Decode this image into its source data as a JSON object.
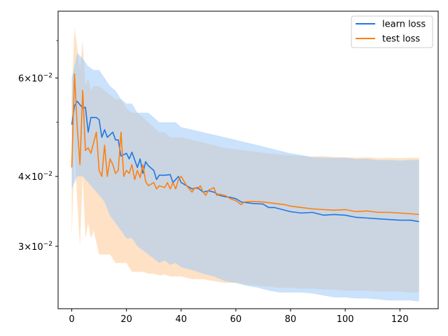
{
  "chart_data": {
    "type": "line",
    "title": "",
    "xlabel": "",
    "ylabel": "",
    "xlim": [
      -5,
      134
    ],
    "ylim": [
      0.0232,
      0.079
    ],
    "yscale": "log",
    "grid": false,
    "legend_position": "top-right",
    "x_ticks": [
      0,
      20,
      40,
      60,
      80,
      100,
      120
    ],
    "x_tick_labels": [
      "0",
      "20",
      "40",
      "60",
      "80",
      "100",
      "120"
    ],
    "y_ticks": [
      0.03,
      0.04,
      0.06
    ],
    "y_tick_labels": [
      {
        "base": "3",
        "times": "×",
        "pow": "10",
        "exp": "−2"
      },
      {
        "base": "4",
        "times": "×",
        "pow": "10",
        "exp": "−2"
      },
      {
        "base": "6",
        "times": "×",
        "pow": "10",
        "exp": "−2"
      }
    ],
    "y_minor_ticks": [
      0.05,
      0.07
    ],
    "x_max": 127,
    "series": [
      {
        "name": "learn loss",
        "color": "#1f77e4",
        "band_color": "#9fcbf7",
        "points": [
          [
            0,
            0.0495
          ],
          [
            1,
            0.0535
          ],
          [
            2,
            0.0545
          ],
          [
            4,
            0.053
          ],
          [
            5,
            0.0532
          ],
          [
            6,
            0.048
          ],
          [
            7,
            0.051
          ],
          [
            9,
            0.051
          ],
          [
            10,
            0.0505
          ],
          [
            11,
            0.047
          ],
          [
            12,
            0.0485
          ],
          [
            13,
            0.047
          ],
          [
            15,
            0.048
          ],
          [
            16,
            0.0465
          ],
          [
            17,
            0.0465
          ],
          [
            18,
            0.0435
          ],
          [
            20,
            0.044
          ],
          [
            21,
            0.043
          ],
          [
            22,
            0.0442
          ],
          [
            24,
            0.0415
          ],
          [
            25,
            0.043
          ],
          [
            26,
            0.0405
          ],
          [
            27,
            0.0425
          ],
          [
            28,
            0.0418
          ],
          [
            30,
            0.041
          ],
          [
            31,
            0.0395
          ],
          [
            32,
            0.0402
          ],
          [
            34,
            0.0402
          ],
          [
            36,
            0.0403
          ],
          [
            37,
            0.039
          ],
          [
            38,
            0.0395
          ],
          [
            39,
            0.04
          ],
          [
            40,
            0.039
          ],
          [
            42,
            0.0385
          ],
          [
            44,
            0.038
          ],
          [
            46,
            0.0382
          ],
          [
            48,
            0.0375
          ],
          [
            50,
            0.0377
          ],
          [
            52,
            0.0375
          ],
          [
            54,
            0.037
          ],
          [
            56,
            0.0368
          ],
          [
            58,
            0.0367
          ],
          [
            60,
            0.0365
          ],
          [
            62,
            0.036
          ],
          [
            66,
            0.0358
          ],
          [
            70,
            0.0357
          ],
          [
            72,
            0.0352
          ],
          [
            74,
            0.0352
          ],
          [
            76,
            0.035
          ],
          [
            80,
            0.0346
          ],
          [
            84,
            0.0344
          ],
          [
            88,
            0.0345
          ],
          [
            92,
            0.0341
          ],
          [
            96,
            0.0342
          ],
          [
            100,
            0.0341
          ],
          [
            104,
            0.0338
          ],
          [
            108,
            0.0337
          ],
          [
            112,
            0.0336
          ],
          [
            116,
            0.0335
          ],
          [
            120,
            0.0334
          ],
          [
            124,
            0.0334
          ],
          [
            127,
            0.0332
          ]
        ],
        "band_upper": [
          [
            0,
            0.06
          ],
          [
            2,
            0.0665
          ],
          [
            4,
            0.065
          ],
          [
            6,
            0.063
          ],
          [
            8,
            0.062
          ],
          [
            10,
            0.062
          ],
          [
            12,
            0.06
          ],
          [
            14,
            0.058
          ],
          [
            16,
            0.057
          ],
          [
            18,
            0.055
          ],
          [
            20,
            0.054
          ],
          [
            22,
            0.054
          ],
          [
            24,
            0.052
          ],
          [
            26,
            0.052
          ],
          [
            28,
            0.052
          ],
          [
            30,
            0.051
          ],
          [
            32,
            0.05
          ],
          [
            34,
            0.05
          ],
          [
            36,
            0.05
          ],
          [
            38,
            0.05
          ],
          [
            40,
            0.049
          ],
          [
            44,
            0.0485
          ],
          [
            48,
            0.048
          ],
          [
            52,
            0.0475
          ],
          [
            56,
            0.047
          ],
          [
            60,
            0.0465
          ],
          [
            64,
            0.046
          ],
          [
            68,
            0.0455
          ],
          [
            72,
            0.045
          ],
          [
            76,
            0.0445
          ],
          [
            80,
            0.044
          ],
          [
            84,
            0.0437
          ],
          [
            88,
            0.0433
          ],
          [
            92,
            0.0432
          ],
          [
            96,
            0.0432
          ],
          [
            100,
            0.0432
          ],
          [
            104,
            0.043
          ],
          [
            108,
            0.043
          ],
          [
            112,
            0.0428
          ],
          [
            116,
            0.0428
          ],
          [
            120,
            0.0427
          ],
          [
            124,
            0.0428
          ],
          [
            127,
            0.0428
          ]
        ],
        "band_lower": [
          [
            0,
            0.038
          ],
          [
            2,
            0.04
          ],
          [
            4,
            0.04
          ],
          [
            6,
            0.039
          ],
          [
            8,
            0.038
          ],
          [
            10,
            0.037
          ],
          [
            12,
            0.036
          ],
          [
            14,
            0.034
          ],
          [
            16,
            0.033
          ],
          [
            18,
            0.032
          ],
          [
            20,
            0.031
          ],
          [
            22,
            0.031
          ],
          [
            24,
            0.03
          ],
          [
            26,
            0.0295
          ],
          [
            28,
            0.029
          ],
          [
            30,
            0.0285
          ],
          [
            32,
            0.028
          ],
          [
            34,
            0.0283
          ],
          [
            36,
            0.0278
          ],
          [
            38,
            0.028
          ],
          [
            40,
            0.0275
          ],
          [
            44,
            0.0272
          ],
          [
            48,
            0.0268
          ],
          [
            52,
            0.0265
          ],
          [
            56,
            0.026
          ],
          [
            60,
            0.0258
          ],
          [
            64,
            0.0255
          ],
          [
            68,
            0.0253
          ],
          [
            72,
            0.025
          ],
          [
            76,
            0.0248
          ],
          [
            80,
            0.0248
          ],
          [
            84,
            0.0248
          ],
          [
            88,
            0.0247
          ],
          [
            92,
            0.0245
          ],
          [
            96,
            0.0243
          ],
          [
            100,
            0.0243
          ],
          [
            104,
            0.0242
          ],
          [
            108,
            0.0242
          ],
          [
            112,
            0.0241
          ],
          [
            116,
            0.024
          ],
          [
            120,
            0.024
          ],
          [
            124,
            0.024
          ],
          [
            127,
            0.0239
          ]
        ]
      },
      {
        "name": "test loss",
        "color": "#ff7f0e",
        "band_color": "#ffcf9f",
        "points": [
          [
            0,
            0.0415
          ],
          [
            1,
            0.061
          ],
          [
            2,
            0.049
          ],
          [
            3,
            0.042
          ],
          [
            4,
            0.057
          ],
          [
            5,
            0.0445
          ],
          [
            6,
            0.045
          ],
          [
            7,
            0.044
          ],
          [
            8,
            0.046
          ],
          [
            9,
            0.048
          ],
          [
            10,
            0.041
          ],
          [
            11,
            0.04
          ],
          [
            12,
            0.0455
          ],
          [
            13,
            0.04
          ],
          [
            14,
            0.043
          ],
          [
            15,
            0.042
          ],
          [
            16,
            0.0405
          ],
          [
            17,
            0.041
          ],
          [
            18,
            0.048
          ],
          [
            19,
            0.04
          ],
          [
            20,
            0.041
          ],
          [
            21,
            0.0405
          ],
          [
            22,
            0.042
          ],
          [
            23,
            0.0395
          ],
          [
            24,
            0.041
          ],
          [
            25,
            0.0398
          ],
          [
            26,
            0.042
          ],
          [
            27,
            0.0392
          ],
          [
            28,
            0.0385
          ],
          [
            30,
            0.039
          ],
          [
            31,
            0.038
          ],
          [
            32,
            0.0385
          ],
          [
            34,
            0.0382
          ],
          [
            35,
            0.039
          ],
          [
            36,
            0.038
          ],
          [
            37,
            0.039
          ],
          [
            38,
            0.038
          ],
          [
            39,
            0.0395
          ],
          [
            40,
            0.04
          ],
          [
            42,
            0.0385
          ],
          [
            44,
            0.0375
          ],
          [
            45,
            0.0382
          ],
          [
            46,
            0.038
          ],
          [
            47,
            0.0385
          ],
          [
            48,
            0.0375
          ],
          [
            49,
            0.037
          ],
          [
            50,
            0.0378
          ],
          [
            52,
            0.0382
          ],
          [
            53,
            0.037
          ],
          [
            54,
            0.0372
          ],
          [
            56,
            0.037
          ],
          [
            58,
            0.0365
          ],
          [
            60,
            0.0362
          ],
          [
            62,
            0.0356
          ],
          [
            63,
            0.036
          ],
          [
            66,
            0.0361
          ],
          [
            70,
            0.036
          ],
          [
            74,
            0.0358
          ],
          [
            78,
            0.0356
          ],
          [
            80,
            0.0354
          ],
          [
            84,
            0.0352
          ],
          [
            88,
            0.035
          ],
          [
            92,
            0.0349
          ],
          [
            96,
            0.0348
          ],
          [
            100,
            0.0349
          ],
          [
            104,
            0.0346
          ],
          [
            108,
            0.0347
          ],
          [
            112,
            0.0345
          ],
          [
            116,
            0.0345
          ],
          [
            120,
            0.0344
          ],
          [
            124,
            0.0343
          ],
          [
            127,
            0.0342
          ]
        ],
        "band_upper": [
          [
            0,
            0.055
          ],
          [
            1,
            0.074
          ],
          [
            2,
            0.068
          ],
          [
            3,
            0.062
          ],
          [
            4,
            0.07
          ],
          [
            5,
            0.058
          ],
          [
            6,
            0.06
          ],
          [
            7,
            0.057
          ],
          [
            8,
            0.058
          ],
          [
            10,
            0.058
          ],
          [
            12,
            0.057
          ],
          [
            14,
            0.056
          ],
          [
            16,
            0.055
          ],
          [
            18,
            0.055
          ],
          [
            20,
            0.053
          ],
          [
            22,
            0.052
          ],
          [
            24,
            0.052
          ],
          [
            26,
            0.051
          ],
          [
            28,
            0.05
          ],
          [
            30,
            0.049
          ],
          [
            32,
            0.048
          ],
          [
            34,
            0.048
          ],
          [
            36,
            0.047
          ],
          [
            40,
            0.047
          ],
          [
            44,
            0.0465
          ],
          [
            48,
            0.046
          ],
          [
            52,
            0.0455
          ],
          [
            56,
            0.045
          ],
          [
            60,
            0.0447
          ],
          [
            64,
            0.0445
          ],
          [
            68,
            0.0442
          ],
          [
            72,
            0.044
          ],
          [
            76,
            0.0438
          ],
          [
            80,
            0.0436
          ],
          [
            84,
            0.0435
          ],
          [
            88,
            0.0434
          ],
          [
            92,
            0.0435
          ],
          [
            96,
            0.0433
          ],
          [
            100,
            0.0433
          ],
          [
            104,
            0.0432
          ],
          [
            108,
            0.0433
          ],
          [
            112,
            0.0431
          ],
          [
            116,
            0.0432
          ],
          [
            120,
            0.0431
          ],
          [
            124,
            0.0432
          ],
          [
            127,
            0.0432
          ]
        ],
        "band_lower": [
          [
            0,
            0.031
          ],
          [
            1,
            0.045
          ],
          [
            2,
            0.036
          ],
          [
            3,
            0.03
          ],
          [
            4,
            0.04
          ],
          [
            5,
            0.031
          ],
          [
            6,
            0.033
          ],
          [
            7,
            0.031
          ],
          [
            8,
            0.032
          ],
          [
            10,
            0.029
          ],
          [
            12,
            0.029
          ],
          [
            14,
            0.029
          ],
          [
            16,
            0.028
          ],
          [
            18,
            0.028
          ],
          [
            20,
            0.028
          ],
          [
            22,
            0.027
          ],
          [
            24,
            0.027
          ],
          [
            26,
            0.027
          ],
          [
            28,
            0.0268
          ],
          [
            30,
            0.0268
          ],
          [
            32,
            0.0266
          ],
          [
            34,
            0.0267
          ],
          [
            36,
            0.0265
          ],
          [
            40,
            0.0265
          ],
          [
            44,
            0.0262
          ],
          [
            48,
            0.0262
          ],
          [
            52,
            0.026
          ],
          [
            56,
            0.0258
          ],
          [
            60,
            0.0258
          ],
          [
            64,
            0.0256
          ],
          [
            68,
            0.0255
          ],
          [
            72,
            0.0254
          ],
          [
            76,
            0.0253
          ],
          [
            80,
            0.0253
          ],
          [
            84,
            0.0252
          ],
          [
            88,
            0.0252
          ],
          [
            92,
            0.0251
          ],
          [
            96,
            0.0251
          ],
          [
            100,
            0.025
          ],
          [
            104,
            0.025
          ],
          [
            108,
            0.025
          ],
          [
            112,
            0.0249
          ],
          [
            116,
            0.0249
          ],
          [
            120,
            0.0249
          ],
          [
            124,
            0.0248
          ],
          [
            127,
            0.0248
          ]
        ]
      }
    ]
  }
}
